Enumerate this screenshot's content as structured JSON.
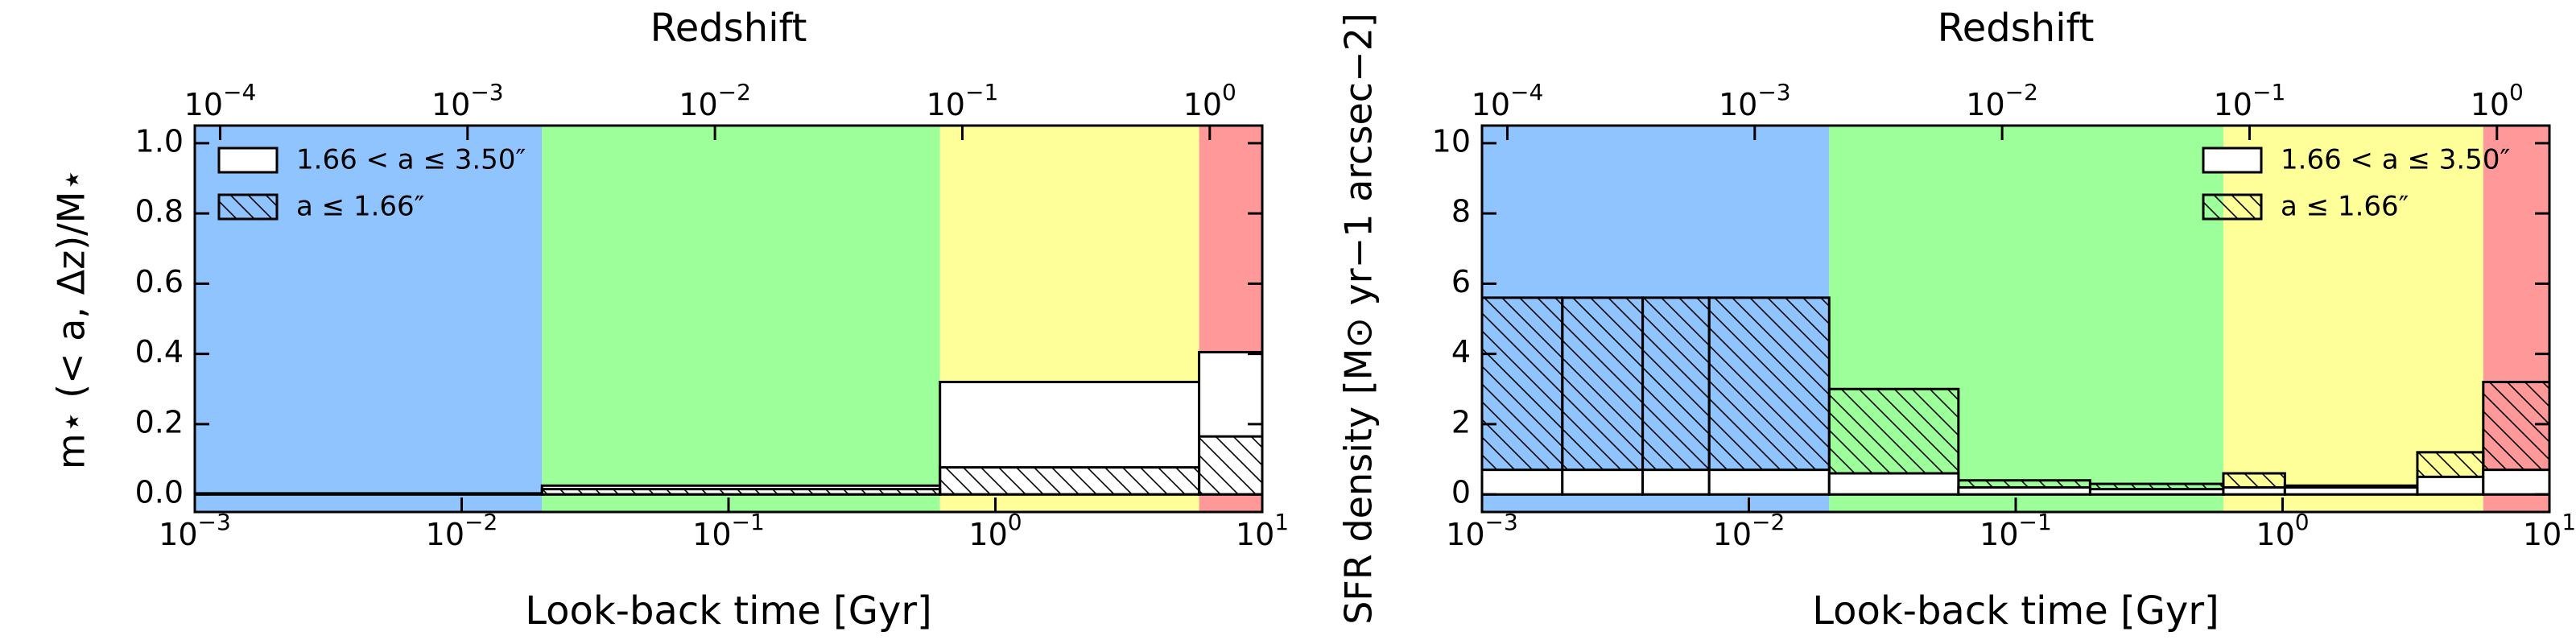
{
  "chart_data": [
    {
      "type": "histogram",
      "x2label": "Redshift",
      "xlabel": "Look-back time [Gyr]",
      "ylabel": "m⋆ (< a, Δz)/M⋆",
      "xlog": true,
      "xlim": [
        0.001,
        10
      ],
      "xticks": [
        {
          "value": 0.001,
          "label": "10−3"
        },
        {
          "value": 0.01,
          "label": "10−2"
        },
        {
          "value": 0.1,
          "label": "10−1"
        },
        {
          "value": 1,
          "label": "100"
        },
        {
          "value": 10,
          "label": "101"
        }
      ],
      "x2lim": [
        7.9e-05,
        1.63
      ],
      "x2ticks": [
        {
          "value": 0.0001,
          "label": "10−4"
        },
        {
          "value": 0.001,
          "label": "10−3"
        },
        {
          "value": 0.01,
          "label": "10−2"
        },
        {
          "value": 0.1,
          "label": "10−1"
        },
        {
          "value": 1,
          "label": "100"
        }
      ],
      "ylim": [
        -0.05,
        1.05
      ],
      "yticks": [
        {
          "value": 0,
          "label": "0.0"
        },
        {
          "value": 0.2,
          "label": "0.2"
        },
        {
          "value": 0.4,
          "label": "0.4"
        },
        {
          "value": 0.6,
          "label": "0.6"
        },
        {
          "value": 0.8,
          "label": "0.8"
        },
        {
          "value": 1,
          "label": "1.0"
        }
      ],
      "regions": [
        {
          "x": [
            0.001,
            0.02
          ],
          "color": "#8fc4ff"
        },
        {
          "x": [
            0.02,
            0.62
          ],
          "color": "#9dff9a"
        },
        {
          "x": [
            0.62,
            5.8
          ],
          "color": "#ffff99"
        },
        {
          "x": [
            5.8,
            10
          ],
          "color": "#ff9999"
        }
      ],
      "bins": [
        0.001,
        0.02,
        0.62,
        5.8,
        10
      ],
      "series": [
        {
          "name": "1.66 < a ≤ 3.50″",
          "color": "#ffffff",
          "hatch": false,
          "values": [
            0.003,
            0.025,
            0.32,
            0.405
          ]
        },
        {
          "name": "a ≤ 1.66″",
          "color": "none",
          "hatch": true,
          "values": [
            0.002,
            0.015,
            0.077,
            0.165
          ]
        }
      ],
      "hatch_on_top": true,
      "legend": "upper left"
    },
    {
      "type": "histogram",
      "x2label": "Redshift",
      "xlabel": "Look-back time [Gyr]",
      "ylabel": "SFR density [M⊙ yr−1 arcsec−2]",
      "xlog": true,
      "xlim": [
        0.001,
        10
      ],
      "xticks": [
        {
          "value": 0.001,
          "label": "10−3"
        },
        {
          "value": 0.01,
          "label": "10−2"
        },
        {
          "value": 0.1,
          "label": "10−1"
        },
        {
          "value": 1,
          "label": "100"
        },
        {
          "value": 10,
          "label": "101"
        }
      ],
      "x2lim": [
        7.9e-05,
        1.63
      ],
      "x2ticks": [
        {
          "value": 0.0001,
          "label": "10−4"
        },
        {
          "value": 0.001,
          "label": "10−3"
        },
        {
          "value": 0.01,
          "label": "10−2"
        },
        {
          "value": 0.1,
          "label": "10−1"
        },
        {
          "value": 1,
          "label": "100"
        }
      ],
      "ylim": [
        -0.5,
        10.5
      ],
      "yticks": [
        0,
        2,
        4,
        6,
        8,
        10
      ],
      "regions": [
        {
          "x": [
            0.001,
            0.02
          ],
          "color": "#8fc4ff"
        },
        {
          "x": [
            0.02,
            0.6
          ],
          "color": "#9dff9a"
        },
        {
          "x": [
            0.6,
            5.65
          ],
          "color": "#ffff99"
        },
        {
          "x": [
            5.65,
            10
          ],
          "color": "#ff9999"
        }
      ],
      "bins": [
        0.001,
        0.002,
        0.004,
        0.0071,
        0.02,
        0.061,
        0.19,
        0.6,
        1.02,
        3.2,
        5.65,
        10
      ],
      "series": [
        {
          "name": "1.66 < a ≤ 3.50″",
          "color": "#ffffff",
          "hatch": false,
          "values": [
            0.7,
            0.7,
            0.7,
            0.7,
            0.6,
            0.2,
            0.15,
            0.2,
            0.2,
            0.5,
            0.7
          ]
        },
        {
          "name": "a ≤ 1.66″",
          "color": "none",
          "hatch": true,
          "values": [
            5.6,
            5.6,
            5.6,
            5.6,
            3.0,
            0.4,
            0.3,
            0.6,
            0.25,
            1.2,
            3.2
          ]
        }
      ],
      "hatch_on_top": false,
      "legend": "upper right"
    }
  ]
}
